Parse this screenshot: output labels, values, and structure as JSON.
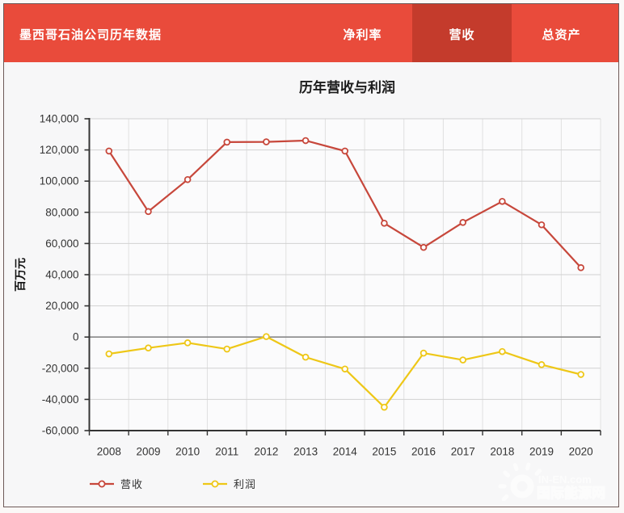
{
  "header": {
    "title": "墨西哥石油公司历年数据",
    "tabs": [
      {
        "label": "净利率",
        "active": false
      },
      {
        "label": "营收",
        "active": true
      },
      {
        "label": "总资产",
        "active": false
      }
    ]
  },
  "colors": {
    "header_bg": "#e94b3b",
    "active_tab_bg": "#c43b2c",
    "revenue_line": "#c7473b",
    "profit_line": "#eec717",
    "axis": "#333333",
    "grid": "#d2d2d2",
    "zero_line": "#888888"
  },
  "chart_data": {
    "type": "line",
    "title": "历年营收与利润",
    "ylabel": "百万元",
    "xlabel": "",
    "categories": [
      "2008",
      "2009",
      "2010",
      "2011",
      "2012",
      "2013",
      "2014",
      "2015",
      "2016",
      "2017",
      "2018",
      "2019",
      "2020"
    ],
    "series": [
      {
        "name": "营收",
        "color": "#c7473b",
        "values": [
          119300,
          80500,
          101000,
          125000,
          125200,
          126000,
          119300,
          73000,
          57500,
          73500,
          87000,
          72000,
          44500
        ]
      },
      {
        "name": "利润",
        "color": "#eec717",
        "values": [
          -10800,
          -7000,
          -3700,
          -7700,
          300,
          -12900,
          -20500,
          -45000,
          -10300,
          -14700,
          -9300,
          -17700,
          -24000
        ]
      }
    ],
    "ylim": [
      -60000,
      140000
    ],
    "ytick_step": 20000,
    "grid": true,
    "legend_position": "bottom-left"
  },
  "watermark": {
    "text_en": "IN-EN.com",
    "text_cn": "国际能源网"
  }
}
